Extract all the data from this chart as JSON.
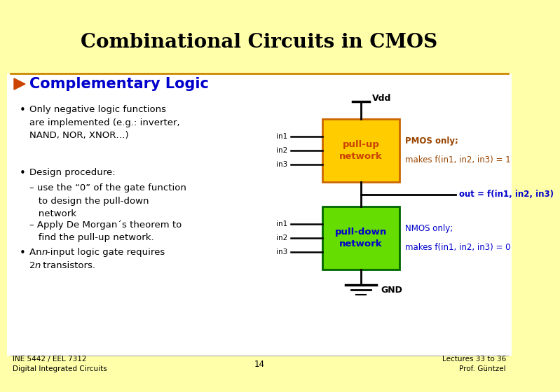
{
  "bg_color": "#ffffaa",
  "white_color": "#ffffff",
  "title": "Combinational Circuits in CMOS",
  "title_color": "#000000",
  "title_fontsize": 20,
  "section_marker_color": "#cc4400",
  "section_title": "Complementary Logic",
  "section_title_color": "#0000cc",
  "section_title_fontsize": 15,
  "bullet_color": "#000000",
  "bullet_fontsize": 9.5,
  "bullet1": "Only negative logic functions\nare implemented (e.g.: inverter,\nNAND, NOR, XNOR…)",
  "bullet2": "Design procedure:",
  "sub_bullet1": "– use the “0” of the gate function\n   to design the pull-down\n   network",
  "sub_bullet2": "– Apply De Morgan´s theorem to\n   find the pull-up network.",
  "footer_left": "INE 5442 / EEL 7312\nDigital Integrated Circuits",
  "footer_center": "14",
  "footer_right": "Lectures 33 to 36\nProf. Güntzel",
  "footer_color": "#000000",
  "footer_fontsize": 7.5,
  "divider_color": "#cc8800",
  "pullup_box_color": "#ffcc00",
  "pullup_box_edge": "#cc6600",
  "pullup_label_color": "#cc4400",
  "pulldown_box_color": "#66dd00",
  "pulldown_box_edge": "#006600",
  "pulldown_label_color": "#0000cc",
  "pmos_text_color": "#994400",
  "nmos_text_color": "#0000cc",
  "out_text_color": "#0000cc",
  "wire_color": "#000000",
  "vdd_label": "Vdd",
  "gnd_label": "GND",
  "in_labels": [
    "in1",
    "in2",
    "in3"
  ],
  "pullup_label": "pull-up\nnetwork",
  "pulldown_label": "pull-down\nnetwork",
  "pmos_line1": "PMOS only;",
  "pmos_line2": "makes f(in1, in2, in3) = 1",
  "nmos_line1": "NMOS only;",
  "nmos_line2": "makes f(in1, in2, in3) = 0",
  "out_text": "out = f(in1, in2, in3)"
}
